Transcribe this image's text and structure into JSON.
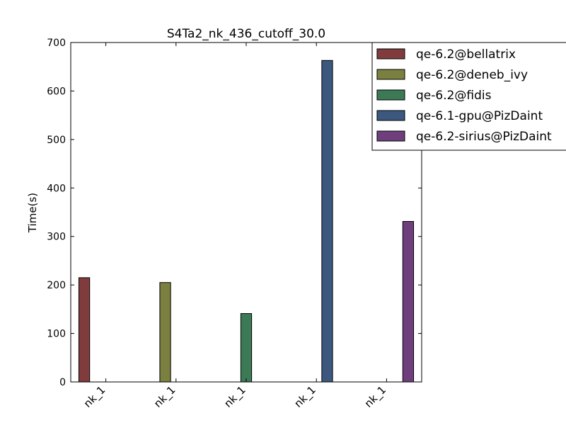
{
  "chart_data": {
    "type": "bar",
    "title": "S4Ta2_nk_436_cutoff_30.0",
    "xlabel": "",
    "ylabel": "Time(s)",
    "ylim": [
      0,
      700
    ],
    "yticks": [
      0,
      100,
      200,
      300,
      400,
      500,
      600,
      700
    ],
    "categories": [
      "nk_1",
      "nk_1",
      "nk_1",
      "nk_1",
      "nk_1"
    ],
    "grid": false,
    "legend_position": "top-right",
    "series": [
      {
        "name": "qe-6.2@bellatrix",
        "color": "#803c3c",
        "values": [
          215,
          null,
          null,
          null,
          null
        ]
      },
      {
        "name": "qe-6.2@deneb_ivy",
        "color": "#7b7f40",
        "values": [
          null,
          205,
          null,
          null,
          null
        ]
      },
      {
        "name": "qe-6.2@fidis",
        "color": "#3c7a55",
        "values": [
          null,
          null,
          141,
          null,
          null
        ]
      },
      {
        "name": "qe-6.1-gpu@PizDaint",
        "color": "#3c587f",
        "values": [
          null,
          null,
          null,
          663,
          null
        ]
      },
      {
        "name": "qe-6.2-sirius@PizDaint",
        "color": "#6f3f7d",
        "values": [
          null,
          null,
          null,
          null,
          331
        ]
      }
    ]
  }
}
